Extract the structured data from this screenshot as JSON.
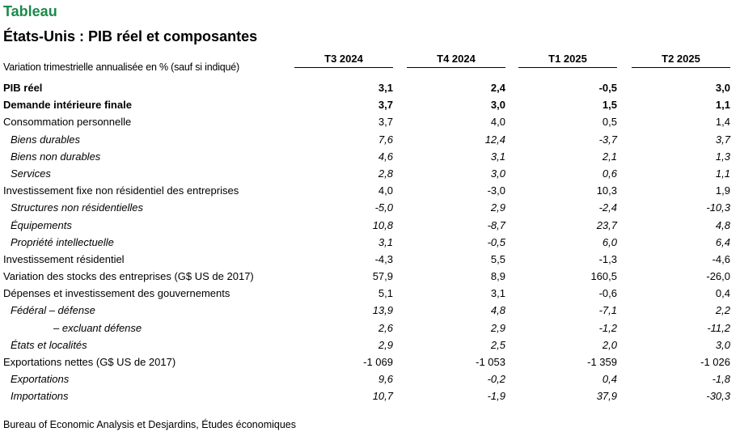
{
  "header": {
    "kicker": "Tableau",
    "title": "États-Unis : PIB réel et composantes",
    "unit_note": "Variation trimestrielle annualisée en % (sauf si indiqué)"
  },
  "columns": [
    "T3 2024",
    "T4 2024",
    "T1 2025",
    "T2 2025"
  ],
  "rows": [
    {
      "label": "PIB réel",
      "style": "bold",
      "values": [
        "3,1",
        "2,4",
        "-0,5",
        "3,0"
      ]
    },
    {
      "label": "Demande intérieure finale",
      "style": "bold",
      "values": [
        "3,7",
        "3,0",
        "1,5",
        "1,1"
      ]
    },
    {
      "label": "Consommation personnelle",
      "style": "normal",
      "values": [
        "3,7",
        "4,0",
        "0,5",
        "1,4"
      ]
    },
    {
      "label": "Biens durables",
      "style": "italic indent1",
      "values": [
        "7,6",
        "12,4",
        "-3,7",
        "3,7"
      ]
    },
    {
      "label": "Biens non durables",
      "style": "italic indent1",
      "values": [
        "4,6",
        "3,1",
        "2,1",
        "1,3"
      ]
    },
    {
      "label": "Services",
      "style": "italic indent1",
      "values": [
        "2,8",
        "3,0",
        "0,6",
        "1,1"
      ]
    },
    {
      "label": "Investissement fixe non résidentiel des entreprises",
      "style": "normal",
      "values": [
        "4,0",
        "-3,0",
        "10,3",
        "1,9"
      ]
    },
    {
      "label": "Structures non résidentielles",
      "style": "italic indent1",
      "values": [
        "-5,0",
        "2,9",
        "-2,4",
        "-10,3"
      ]
    },
    {
      "label": "Équipements",
      "style": "italic indent1",
      "values": [
        "10,8",
        "-8,7",
        "23,7",
        "4,8"
      ]
    },
    {
      "label": "Propriété intellectuelle",
      "style": "italic indent1",
      "values": [
        "3,1",
        "-0,5",
        "6,0",
        "6,4"
      ]
    },
    {
      "label": "Investissement résidentiel",
      "style": "normal",
      "values": [
        "-4,3",
        "5,5",
        "-1,3",
        "-4,6"
      ]
    },
    {
      "label": "Variation des stocks des entreprises (G$ US de 2017)",
      "style": "normal",
      "values": [
        "57,9",
        "8,9",
        "160,5",
        "-26,0"
      ]
    },
    {
      "label": "Dépenses et investissement des gouvernements",
      "style": "normal",
      "values": [
        "5,1",
        "3,1",
        "-0,6",
        "0,4"
      ]
    },
    {
      "label": "Fédéral – défense",
      "style": "italic indent1",
      "values": [
        "13,9",
        "4,8",
        "-7,1",
        "2,2"
      ]
    },
    {
      "label": "– excluant défense",
      "style": "italic indent2",
      "values": [
        "2,6",
        "2,9",
        "-1,2",
        "-11,2"
      ]
    },
    {
      "label": "États et localités",
      "style": "italic indent1",
      "values": [
        "2,9",
        "2,5",
        "2,0",
        "3,0"
      ]
    },
    {
      "label": "Exportations nettes (G$ US de 2017)",
      "style": "normal",
      "values": [
        "-1 069",
        "-1 053",
        "-1 359",
        "-1 026"
      ]
    },
    {
      "label": "Exportations",
      "style": "italic indent1",
      "values": [
        "9,6",
        "-0,2",
        "0,4",
        "-1,8"
      ]
    },
    {
      "label": "Importations",
      "style": "italic indent1",
      "values": [
        "10,7",
        "-1,9",
        "37,9",
        "-30,3"
      ]
    }
  ],
  "footer": {
    "source": "Bureau of Economic Analysis et Desjardins, Études économiques"
  }
}
